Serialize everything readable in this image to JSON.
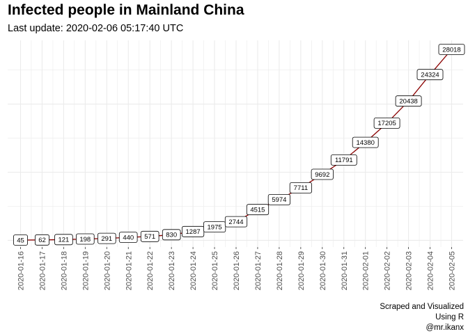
{
  "title": "Infected people in Mainland China",
  "subtitle": "Last update: 2020-02-06 05:17:40 UTC",
  "caption": [
    "Scraped and Visualized",
    "Using R",
    "@mr.ikanx"
  ],
  "colors": {
    "line": "#8b0000",
    "grid": "#ebebeb",
    "label_border": "#000000",
    "label_fill": "#ffffff"
  },
  "chart_data": {
    "type": "line",
    "title": "Infected people in Mainland China",
    "subtitle": "Last update: 2020-02-06 05:17:40 UTC",
    "xlabel": "",
    "ylabel": "",
    "grid": true,
    "legend": "none",
    "y_tick_labels": "none",
    "ylim": [
      0,
      30000
    ],
    "x": [
      "2020-01-16",
      "2020-01-17",
      "2020-01-18",
      "2020-01-19",
      "2020-01-20",
      "2020-01-21",
      "2020-01-22",
      "2020-01-23",
      "2020-01-24",
      "2020-01-25",
      "2020-01-26",
      "2020-01-27",
      "2020-01-28",
      "2020-01-29",
      "2020-01-30",
      "2020-01-31",
      "2020-02-01",
      "2020-02-02",
      "2020-02-03",
      "2020-02-04",
      "2020-02-05"
    ],
    "series": [
      {
        "values": [
          45,
          62,
          121,
          198,
          291,
          440,
          571,
          830,
          1287,
          1975,
          2744,
          4515,
          5974,
          7711,
          9692,
          11791,
          14380,
          17205,
          20438,
          24324,
          28018
        ]
      }
    ]
  }
}
